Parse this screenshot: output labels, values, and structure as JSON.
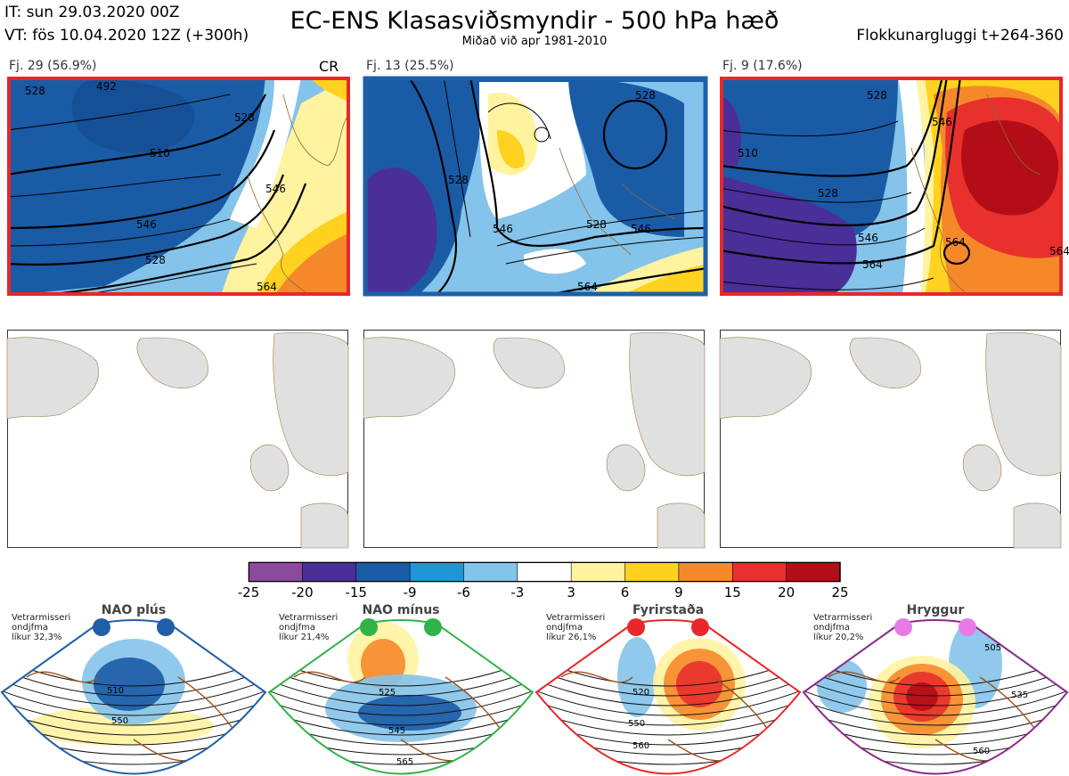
{
  "header": {
    "it": "IT: sun 29.03.2020 00Z",
    "vt": "VT: fös 10.04.2020 12Z  (+300h)",
    "title": "EC-ENS Klasasviðsmyndir - 500 hPa hæð",
    "subtitle": "Miðað við apr 1981-2010",
    "window": "Flokkunargluggi t+264-360"
  },
  "panels": [
    {
      "label": "Fj. 29 (56.9%)",
      "tag": "CR",
      "border_color": "#e8272a",
      "contours": [
        "510",
        "528",
        "546",
        "528",
        "546",
        "564",
        "528",
        "492"
      ]
    },
    {
      "label": "Fj. 13 (25.5%)",
      "tag": "",
      "border_color": "#1f5fa8",
      "contours": [
        "528",
        "546",
        "564",
        "528",
        "546",
        "528"
      ]
    },
    {
      "label": "Fj. 9 (17.6%)",
      "tag": "",
      "border_color": "#e8272a",
      "contours": [
        "510",
        "528",
        "546",
        "564",
        "564",
        "546",
        "564",
        "528"
      ]
    }
  ],
  "colorbar": {
    "ticks": [
      "-25",
      "-20",
      "-15",
      "-9",
      "-6",
      "-3",
      "3",
      "6",
      "9",
      "15",
      "20",
      "25"
    ],
    "colors": [
      "#8c4a9e",
      "#4a2f98",
      "#1a5ba6",
      "#1e96d8",
      "#84c3ea",
      "#ffffff",
      "#fff3a0",
      "#ffd21f",
      "#f5892a",
      "#e8302c",
      "#b30d17"
    ]
  },
  "regimes": [
    {
      "title": "NAO plús",
      "winter": "Vetrarmisseri\nondjfma\nlíkur 32,3%",
      "dot_color": "#1f5fa8",
      "frame_color": "#1f5fa8",
      "labels": [
        "510",
        "550"
      ]
    },
    {
      "title": "NAO mínus",
      "winter": "Vetrarmisseri\nondjfma\nlíkur 21,4%",
      "dot_color": "#2fb34a",
      "frame_color": "#2fb34a",
      "labels": [
        "525",
        "545",
        "565"
      ]
    },
    {
      "title": "Fyrirstaða",
      "winter": "Vetrarmisseri\nondjfma\nlíkur 26,1%",
      "dot_color": "#e8272a",
      "frame_color": "#e8272a",
      "labels": [
        "520",
        "550",
        "560"
      ]
    },
    {
      "title": "Hryggur",
      "winter": "Vetrarmisseri\nondjfma\nlíkur 20,2%",
      "dot_color": "#e87ae8",
      "frame_color": "#8b2a8b",
      "labels": [
        "505",
        "535",
        "560"
      ]
    }
  ]
}
